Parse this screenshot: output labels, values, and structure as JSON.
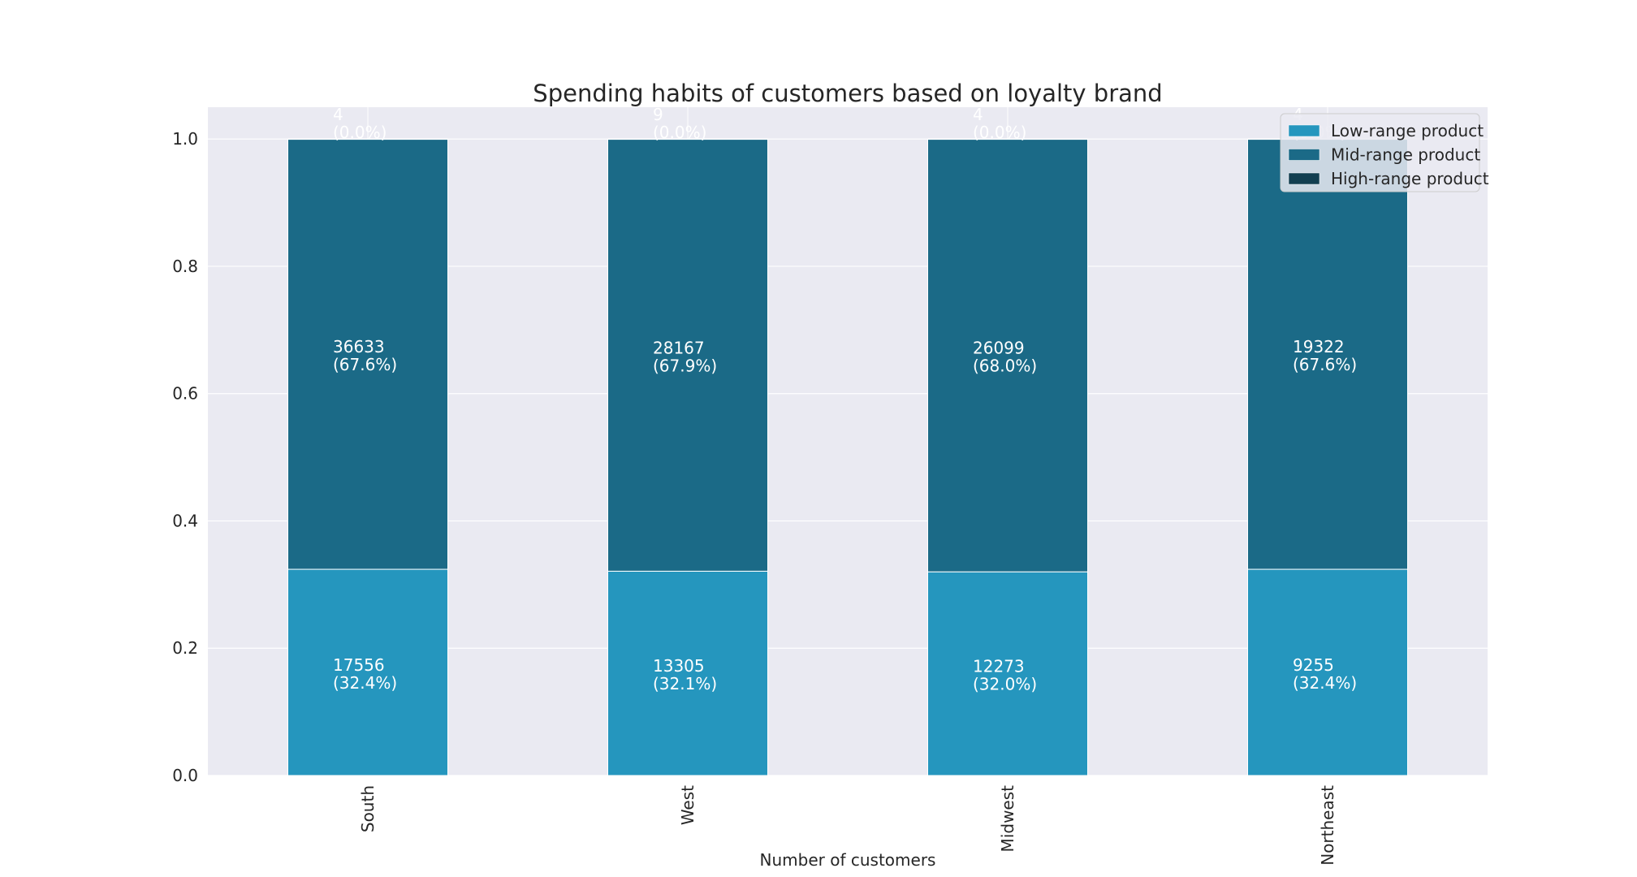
{
  "chart_data": {
    "type": "bar",
    "stacked": true,
    "normalized": true,
    "title": "Spending habits of customers based on loyalty brand",
    "xlabel": "Number of customers",
    "ylabel": "",
    "ylim": [
      0,
      1.05
    ],
    "yticks": [
      "0.0",
      "0.2",
      "0.4",
      "0.6",
      "0.8",
      "1.0"
    ],
    "categories": [
      "South",
      "West",
      "Midwest",
      "Northeast"
    ],
    "series": [
      {
        "name": "Low-range product",
        "color": "#2596be",
        "values": [
          0.324,
          0.321,
          0.32,
          0.324
        ],
        "labels": [
          "17556",
          "13305",
          "12273",
          "9255"
        ],
        "percents": [
          "(32.4%)",
          "(32.1%)",
          "(32.0%)",
          "(32.4%)"
        ]
      },
      {
        "name": "Mid-range product",
        "color": "#1b6a87",
        "values": [
          0.676,
          0.679,
          0.68,
          0.676
        ],
        "labels": [
          "36633",
          "28167",
          "26099",
          "19322"
        ],
        "percents": [
          "(67.6%)",
          "(67.9%)",
          "(68.0%)",
          "(67.6%)"
        ]
      },
      {
        "name": "High-range product",
        "color": "#123f51",
        "values": [
          0.0001,
          0.0001,
          0.0001,
          0.0001
        ],
        "labels": [
          "4",
          "9",
          "4",
          "4"
        ],
        "percents": [
          "(0.0%)",
          "(0.0%)",
          "(0.0%)",
          "(0.0%)"
        ]
      }
    ],
    "legend_position": "top-right",
    "grid": true,
    "background": "#eaeaf2"
  }
}
